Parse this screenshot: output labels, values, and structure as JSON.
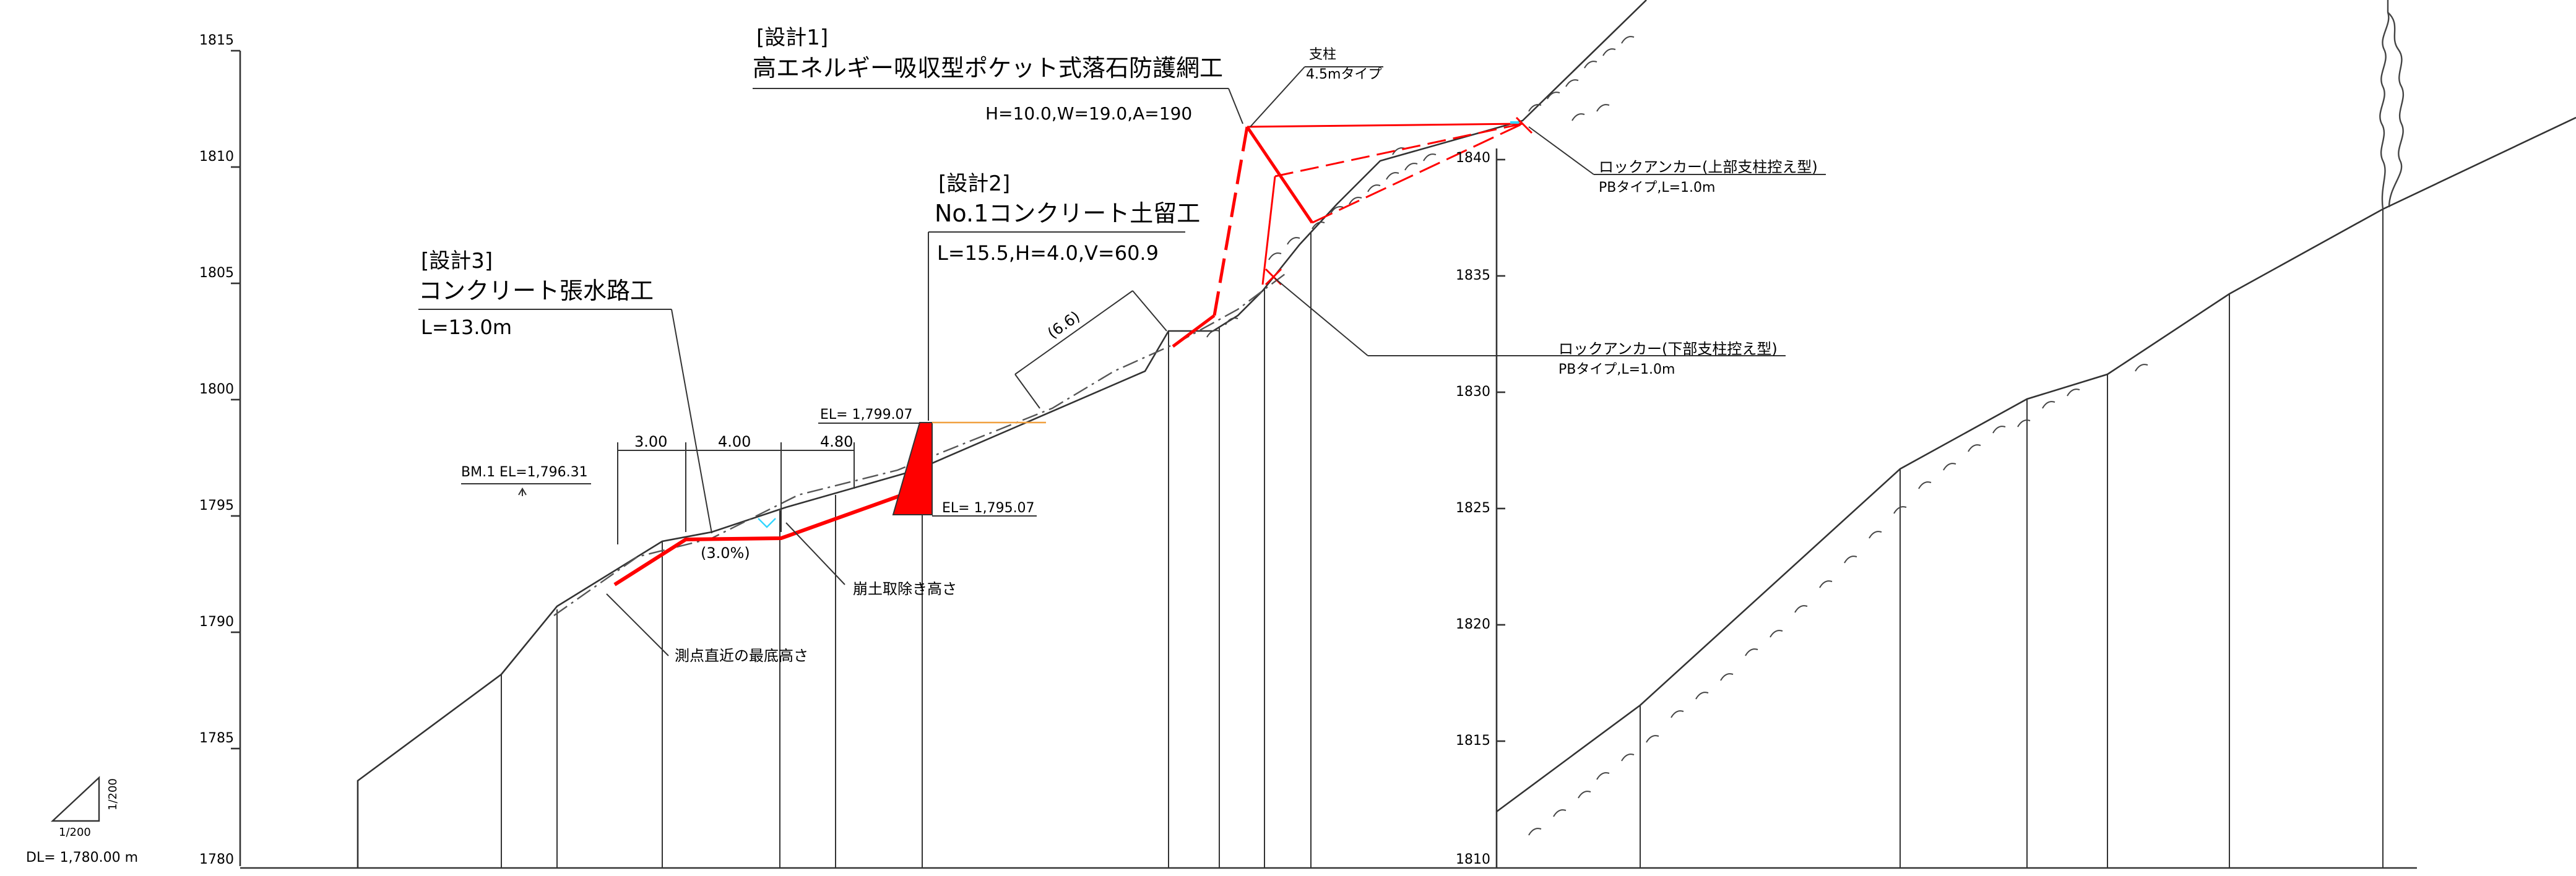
{
  "left_elevation_ticks": [
    "1815",
    "1810",
    "1805",
    "1800",
    "1795",
    "1790",
    "1785",
    "1780"
  ],
  "right_elevation_ticks": [
    "1840",
    "1835",
    "1830",
    "1825",
    "1820",
    "1815",
    "1810"
  ],
  "design1": {
    "tag": "[設計1]",
    "title": "高エネルギー吸収型ポケット式落石防護網工",
    "spec": "H=10.0,W=19.0,A=190",
    "post_label": "支柱",
    "post_type": "4.5mタイプ"
  },
  "design2": {
    "tag": "[設計2]",
    "title": "No.1コンクリート土留工",
    "spec": "L=15.5,H=4.0,V=60.9"
  },
  "design3": {
    "tag": "[設計3]",
    "title": "コンクリート張水路工",
    "spec": "L=13.0m"
  },
  "anchor_upper": {
    "title": "ロックアンカー(上部支柱控え型)",
    "spec": "PBタイプ,L=1.0m"
  },
  "anchor_lower": {
    "title": "ロックアンカー(下部支柱控え型)",
    "spec": "PBタイプ,L=1.0m"
  },
  "dimensions": {
    "d1": "3.00",
    "d2": "4.00",
    "d3": "4.80",
    "slope_len": "(6.6)",
    "gradient": "(3.0%)"
  },
  "elevations": {
    "wall_top": "EL= 1,799.07",
    "wall_bottom": "EL= 1,795.07",
    "benchmark": "BM.1  EL=1,796.31"
  },
  "notes": {
    "debris_removal": "崩土取除き高さ",
    "lowest_bed": "測点直近の最底高さ"
  },
  "scale": {
    "horizontal": "1/200",
    "vertical": "1/200"
  },
  "datum": "DL= 1,780.00 m",
  "colors": {
    "design": "#ff0000",
    "ink": "#333333",
    "cyan": "#33d6ff",
    "orange": "#f0a040"
  }
}
